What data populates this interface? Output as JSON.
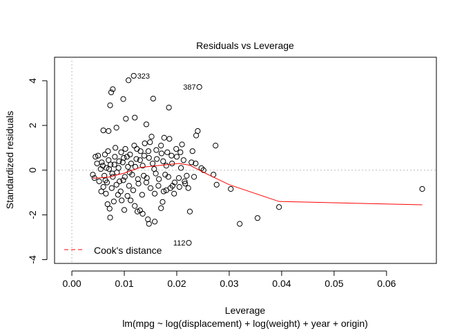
{
  "chart_data": {
    "type": "scatter",
    "title": "Residuals vs Leverage",
    "xlabel": "Leverage",
    "ylabel": "Standardized residuals",
    "subtitle": "lm(mpg ~ log(displacement) + log(weight) + year + origin)",
    "xlim": [
      -0.0033,
      0.0695
    ],
    "ylim": [
      -4.17,
      5.05
    ],
    "x_ticks": [
      0.0,
      0.01,
      0.02,
      0.03,
      0.04,
      0.05,
      0.06
    ],
    "x_tick_labels": [
      "0.00",
      "0.01",
      "0.02",
      "0.03",
      "0.04",
      "0.05",
      "0.06"
    ],
    "y_ticks": [
      -4,
      -2,
      0,
      2,
      4
    ],
    "y_tick_labels": [
      "-4",
      "-2",
      "0",
      "2",
      "4"
    ],
    "legend": {
      "label": "Cook's distance",
      "position": "bottom-left",
      "color": "#ff0000",
      "line": "dashed"
    },
    "colors": {
      "smooth": "#ff0000",
      "reference": "#bbbbbb",
      "points": "#000000"
    },
    "point_labels": [
      {
        "label": "323",
        "x": 0.0118,
        "y": 4.22,
        "side": "right"
      },
      {
        "label": "387",
        "x": 0.0243,
        "y": 3.72,
        "side": "left"
      },
      {
        "label": "112",
        "x": 0.0223,
        "y": -3.25,
        "side": "left"
      }
    ],
    "smooth_line": [
      [
        0.004,
        -0.36
      ],
      [
        0.007,
        -0.31
      ],
      [
        0.01,
        -0.13
      ],
      [
        0.013,
        0.12
      ],
      [
        0.017,
        0.22
      ],
      [
        0.0205,
        0.3
      ],
      [
        0.0225,
        0.22
      ],
      [
        0.026,
        -0.2
      ],
      [
        0.03,
        -0.65
      ],
      [
        0.0395,
        -1.4
      ],
      [
        0.0668,
        -1.55
      ]
    ],
    "points": [
      [
        0.0118,
        4.22
      ],
      [
        0.0243,
        3.72
      ],
      [
        0.0223,
        -3.25
      ],
      [
        0.0668,
        -0.84
      ],
      [
        0.0395,
        -1.65
      ],
      [
        0.0354,
        -2.14
      ],
      [
        0.032,
        -2.4
      ],
      [
        0.0303,
        -0.84
      ],
      [
        0.0276,
        -0.65
      ],
      [
        0.027,
        -0.2
      ],
      [
        0.0274,
        1.1
      ],
      [
        0.0247,
        0.09
      ],
      [
        0.0233,
        -0.3
      ],
      [
        0.0225,
        -1.85
      ],
      [
        0.0078,
        3.62
      ],
      [
        0.0075,
        3.48
      ],
      [
        0.0073,
        2.9
      ],
      [
        0.0108,
        4.02
      ],
      [
        0.0098,
        3.18
      ],
      [
        0.0155,
        3.2
      ],
      [
        0.0185,
        2.8
      ],
      [
        0.006,
        1.78
      ],
      [
        0.007,
        1.75
      ],
      [
        0.0085,
        1.9
      ],
      [
        0.0103,
        2.3
      ],
      [
        0.012,
        2.35
      ],
      [
        0.0142,
        2.05
      ],
      [
        0.024,
        1.75
      ],
      [
        0.0237,
        1.55
      ],
      [
        0.023,
        0.85
      ],
      [
        0.0045,
        0.6
      ],
      [
        0.005,
        0.65
      ],
      [
        0.0055,
        0.05
      ],
      [
        0.006,
        -0.75
      ],
      [
        0.0065,
        -1.05
      ],
      [
        0.0068,
        -1.52
      ],
      [
        0.0072,
        -1.72
      ],
      [
        0.0073,
        -2.12
      ],
      [
        0.008,
        -1.4
      ],
      [
        0.0088,
        -1.1
      ],
      [
        0.0095,
        -1.35
      ],
      [
        0.01,
        -1.78
      ],
      [
        0.0106,
        -1.15
      ],
      [
        0.0112,
        -1.35
      ],
      [
        0.012,
        -1.6
      ],
      [
        0.0125,
        -1.85
      ],
      [
        0.013,
        -1.8
      ],
      [
        0.0135,
        -1.95
      ],
      [
        0.0145,
        -2.2
      ],
      [
        0.0147,
        -2.4
      ],
      [
        0.0158,
        -2.3
      ],
      [
        0.017,
        -1.7
      ],
      [
        0.0173,
        -1.42
      ],
      [
        0.018,
        -0.9
      ],
      [
        0.0188,
        -0.8
      ],
      [
        0.0205,
        -0.75
      ],
      [
        0.0215,
        -0.5
      ],
      [
        0.0222,
        -0.8
      ],
      [
        0.004,
        -0.2
      ],
      [
        0.0043,
        -0.35
      ],
      [
        0.0048,
        0.3
      ],
      [
        0.0052,
        -0.5
      ],
      [
        0.0057,
        0.35
      ],
      [
        0.0062,
        -0.25
      ],
      [
        0.0066,
        0.1
      ],
      [
        0.007,
        0.45
      ],
      [
        0.0074,
        0.25
      ],
      [
        0.0078,
        -0.3
      ],
      [
        0.0082,
        0.6
      ],
      [
        0.0086,
        -0.1
      ],
      [
        0.009,
        0.4
      ],
      [
        0.0094,
        0.8
      ],
      [
        0.0098,
        -0.45
      ],
      [
        0.0102,
        0.95
      ],
      [
        0.0107,
        0.15
      ],
      [
        0.0111,
        0.7
      ],
      [
        0.0115,
        -0.2
      ],
      [
        0.0119,
        1.1
      ],
      [
        0.0123,
        0.5
      ],
      [
        0.0127,
        -0.6
      ],
      [
        0.0131,
        0.85
      ],
      [
        0.0135,
        0.2
      ],
      [
        0.0139,
        1.2
      ],
      [
        0.0143,
        -0.35
      ],
      [
        0.0147,
        0.55
      ],
      [
        0.0152,
        1.5
      ],
      [
        0.0157,
        0.05
      ],
      [
        0.0161,
        0.9
      ],
      [
        0.0165,
        -0.7
      ],
      [
        0.017,
        1.1
      ],
      [
        0.0174,
        0.4
      ],
      [
        0.0178,
        -0.2
      ],
      [
        0.0182,
        0.8
      ],
      [
        0.0186,
        1.4
      ],
      [
        0.0191,
        0.3
      ],
      [
        0.0196,
        -0.55
      ],
      [
        0.02,
        0.6
      ],
      [
        0.0208,
        0.1
      ],
      [
        0.0213,
        0.45
      ],
      [
        0.0219,
        -0.25
      ],
      [
        0.0228,
        0.35
      ],
      [
        0.0063,
        0.7
      ],
      [
        0.0067,
        -0.55
      ],
      [
        0.0071,
        0.05
      ],
      [
        0.0076,
        -0.8
      ],
      [
        0.0081,
        0.25
      ],
      [
        0.0085,
        -0.65
      ],
      [
        0.0089,
        0.1
      ],
      [
        0.0093,
        -0.95
      ],
      [
        0.0097,
        0.35
      ],
      [
        0.0101,
        -0.3
      ],
      [
        0.0105,
        0.6
      ],
      [
        0.0109,
        -0.7
      ],
      [
        0.0113,
        0.3
      ],
      [
        0.0117,
        -0.9
      ],
      [
        0.0121,
        0.15
      ],
      [
        0.0126,
        -0.4
      ],
      [
        0.013,
        0.45
      ],
      [
        0.0134,
        -1.1
      ],
      [
        0.0138,
        0.65
      ],
      [
        0.0142,
        -0.55
      ],
      [
        0.0146,
        0.85
      ],
      [
        0.015,
        -0.8
      ],
      [
        0.0154,
        0.3
      ],
      [
        0.0158,
        -1.05
      ],
      [
        0.0162,
        0.5
      ],
      [
        0.0166,
        -0.4
      ],
      [
        0.0171,
        0.75
      ],
      [
        0.0175,
        -0.95
      ],
      [
        0.018,
        0.2
      ],
      [
        0.0184,
        -0.3
      ],
      [
        0.019,
        0.65
      ],
      [
        0.0195,
        -1.05
      ],
      [
        0.0199,
        0.95
      ],
      [
        0.0204,
        -0.35
      ],
      [
        0.021,
        1.15
      ],
      [
        0.0216,
        -0.6
      ],
      [
        0.0056,
        -0.95
      ],
      [
        0.0059,
        0.2
      ],
      [
        0.0064,
        -0.45
      ],
      [
        0.0069,
        0.85
      ],
      [
        0.0077,
        -0.15
      ],
      [
        0.0083,
        1.0
      ],
      [
        0.0091,
        -0.5
      ],
      [
        0.0099,
        0.55
      ],
      [
        0.011,
        -0.1
      ],
      [
        0.0124,
        0.95
      ],
      [
        0.0137,
        -0.25
      ],
      [
        0.0149,
        1.25
      ],
      [
        0.016,
        -0.15
      ],
      [
        0.0176,
        1.45
      ],
      [
        0.0192,
        -0.7
      ],
      [
        0.0207,
        0.8
      ],
      [
        0.0236,
        0.3
      ],
      [
        0.0251,
        0.0
      ]
    ]
  }
}
